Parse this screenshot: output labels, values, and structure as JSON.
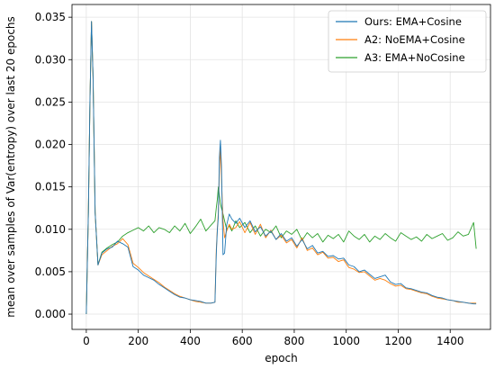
{
  "chart_data": {
    "type": "line",
    "title": "",
    "xlabel": "epoch",
    "ylabel": "mean over samples of Var(entropy) over last 20 epochs",
    "xlim": [
      -55,
      1555
    ],
    "ylim": [
      -0.0018,
      0.0365
    ],
    "x_ticks": [
      0,
      200,
      400,
      600,
      800,
      1000,
      1200,
      1400
    ],
    "x_tick_labels": [
      "0",
      "200",
      "400",
      "600",
      "800",
      "1000",
      "1200",
      "1400"
    ],
    "y_ticks": [
      0.0,
      0.005,
      0.01,
      0.015,
      0.02,
      0.025,
      0.03,
      0.035
    ],
    "y_tick_labels": [
      "0.000",
      "0.005",
      "0.010",
      "0.015",
      "0.020",
      "0.025",
      "0.030",
      "0.035"
    ],
    "grid": true,
    "legend_position": "top-right",
    "series": [
      {
        "name": "Ours: EMA+Cosine",
        "color": "#1f77b4",
        "x": [
          0,
          8,
          14,
          20,
          26,
          34,
          45,
          60,
          80,
          100,
          120,
          140,
          160,
          180,
          200,
          220,
          240,
          260,
          280,
          300,
          320,
          340,
          360,
          380,
          400,
          420,
          440,
          460,
          480,
          495,
          500,
          504,
          508,
          512,
          516,
          520,
          526,
          532,
          540,
          550,
          560,
          575,
          590,
          610,
          630,
          650,
          670,
          690,
          710,
          730,
          750,
          770,
          790,
          810,
          830,
          850,
          870,
          890,
          910,
          930,
          950,
          970,
          990,
          1010,
          1030,
          1050,
          1070,
          1090,
          1110,
          1130,
          1150,
          1170,
          1190,
          1210,
          1230,
          1250,
          1270,
          1290,
          1310,
          1330,
          1350,
          1370,
          1390,
          1410,
          1430,
          1450,
          1470,
          1490,
          1500
        ],
        "y": [
          0.0,
          0.012,
          0.025,
          0.0345,
          0.028,
          0.012,
          0.0058,
          0.0072,
          0.0077,
          0.0079,
          0.0086,
          0.0083,
          0.0079,
          0.0056,
          0.0052,
          0.0046,
          0.0043,
          0.004,
          0.0035,
          0.0031,
          0.0027,
          0.0023,
          0.002,
          0.0019,
          0.0017,
          0.0016,
          0.0015,
          0.0013,
          0.0013,
          0.0014,
          0.007,
          0.0098,
          0.0115,
          0.0185,
          0.0205,
          0.0175,
          0.007,
          0.0072,
          0.0105,
          0.0118,
          0.0112,
          0.0107,
          0.0113,
          0.0102,
          0.011,
          0.0097,
          0.0103,
          0.0092,
          0.0098,
          0.0088,
          0.0095,
          0.0086,
          0.009,
          0.008,
          0.0088,
          0.0077,
          0.0081,
          0.0072,
          0.0074,
          0.0068,
          0.0069,
          0.0065,
          0.0066,
          0.0058,
          0.0056,
          0.005,
          0.0052,
          0.0047,
          0.0042,
          0.0044,
          0.0046,
          0.0038,
          0.0035,
          0.0036,
          0.0031,
          0.003,
          0.0028,
          0.0026,
          0.0025,
          0.0022,
          0.002,
          0.0019,
          0.0017,
          0.0016,
          0.0015,
          0.0014,
          0.0013,
          0.0012,
          0.0012
        ]
      },
      {
        "name": "A2: NoEMA+Cosine",
        "color": "#ff7f0e",
        "x": [
          0,
          8,
          14,
          20,
          26,
          34,
          45,
          60,
          80,
          100,
          120,
          140,
          160,
          180,
          200,
          220,
          240,
          260,
          280,
          300,
          320,
          340,
          360,
          380,
          400,
          420,
          440,
          460,
          480,
          495,
          500,
          504,
          508,
          512,
          516,
          520,
          526,
          532,
          540,
          550,
          560,
          575,
          590,
          610,
          630,
          650,
          670,
          690,
          710,
          730,
          750,
          770,
          790,
          810,
          830,
          850,
          870,
          890,
          910,
          930,
          950,
          970,
          990,
          1010,
          1030,
          1050,
          1070,
          1090,
          1110,
          1130,
          1150,
          1170,
          1190,
          1210,
          1230,
          1250,
          1270,
          1290,
          1310,
          1330,
          1350,
          1370,
          1390,
          1410,
          1430,
          1450,
          1470,
          1490,
          1500
        ],
        "y": [
          0.0,
          0.012,
          0.025,
          0.0345,
          0.028,
          0.012,
          0.0058,
          0.007,
          0.0075,
          0.008,
          0.0083,
          0.0089,
          0.0082,
          0.006,
          0.0055,
          0.0049,
          0.0045,
          0.0041,
          0.0037,
          0.0032,
          0.0028,
          0.0024,
          0.0021,
          0.0019,
          0.0017,
          0.0015,
          0.0014,
          0.0013,
          0.0013,
          0.0014,
          0.0075,
          0.01,
          0.012,
          0.017,
          0.0195,
          0.016,
          0.011,
          0.009,
          0.0098,
          0.0106,
          0.01,
          0.0102,
          0.0109,
          0.0096,
          0.0108,
          0.0094,
          0.0106,
          0.009,
          0.0099,
          0.0088,
          0.0093,
          0.0084,
          0.0088,
          0.0078,
          0.009,
          0.0075,
          0.0078,
          0.007,
          0.0073,
          0.0066,
          0.0067,
          0.0062,
          0.0064,
          0.0055,
          0.0053,
          0.0049,
          0.005,
          0.0045,
          0.004,
          0.0042,
          0.004,
          0.0036,
          0.0033,
          0.0034,
          0.003,
          0.0029,
          0.0027,
          0.0025,
          0.0024,
          0.0021,
          0.0019,
          0.0018,
          0.0017,
          0.0016,
          0.0014,
          0.0014,
          0.0013,
          0.0013,
          0.0013
        ]
      },
      {
        "name": "A3: EMA+NoCosine",
        "color": "#2ca02c",
        "x": [
          0,
          8,
          14,
          20,
          26,
          34,
          45,
          60,
          80,
          100,
          120,
          140,
          160,
          180,
          200,
          220,
          240,
          260,
          280,
          300,
          320,
          340,
          360,
          380,
          400,
          420,
          440,
          460,
          480,
          495,
          500,
          504,
          508,
          512,
          516,
          520,
          526,
          532,
          540,
          550,
          560,
          575,
          590,
          610,
          630,
          650,
          670,
          690,
          710,
          730,
          750,
          770,
          790,
          810,
          830,
          850,
          870,
          890,
          910,
          930,
          950,
          970,
          990,
          1010,
          1030,
          1050,
          1070,
          1090,
          1110,
          1130,
          1150,
          1170,
          1190,
          1210,
          1230,
          1250,
          1270,
          1290,
          1310,
          1330,
          1350,
          1370,
          1390,
          1410,
          1430,
          1450,
          1470,
          1490,
          1500
        ],
        "y": [
          0.0,
          0.012,
          0.025,
          0.0345,
          0.028,
          0.012,
          0.0058,
          0.0073,
          0.0078,
          0.0082,
          0.0085,
          0.0092,
          0.0096,
          0.0099,
          0.0102,
          0.0098,
          0.0104,
          0.0096,
          0.0102,
          0.01,
          0.0096,
          0.0104,
          0.0098,
          0.0107,
          0.0095,
          0.0103,
          0.0112,
          0.0098,
          0.0105,
          0.011,
          0.0125,
          0.0135,
          0.015,
          0.014,
          0.013,
          0.0125,
          0.0118,
          0.011,
          0.01,
          0.0104,
          0.0098,
          0.011,
          0.0102,
          0.0108,
          0.0096,
          0.0104,
          0.0092,
          0.01,
          0.0096,
          0.0104,
          0.009,
          0.0098,
          0.0094,
          0.01,
          0.0087,
          0.0096,
          0.009,
          0.0095,
          0.0085,
          0.0093,
          0.0089,
          0.0094,
          0.0085,
          0.0098,
          0.0092,
          0.0088,
          0.0094,
          0.0085,
          0.0092,
          0.0088,
          0.0095,
          0.009,
          0.0086,
          0.0096,
          0.0092,
          0.0088,
          0.0091,
          0.0086,
          0.0094,
          0.0089,
          0.0092,
          0.0095,
          0.0087,
          0.009,
          0.0097,
          0.0092,
          0.0094,
          0.0108,
          0.0077
        ]
      }
    ]
  }
}
